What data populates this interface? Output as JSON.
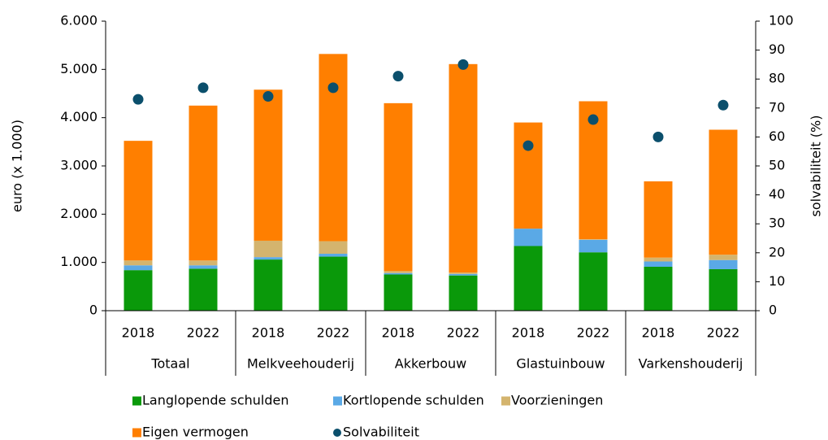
{
  "chart_data": {
    "type": "bar",
    "y_label": "euro (x 1.000)",
    "y2_label": "solvabiliteit (%)",
    "categories": [
      "2018",
      "2022",
      "2018",
      "2022",
      "2018",
      "2022",
      "2018",
      "2022",
      "2018",
      "2022"
    ],
    "groups": [
      "Totaal",
      "Melkveehouderij",
      "Akkerbouw",
      "Glastuinbouw",
      "Varkenshouderij"
    ],
    "series": [
      {
        "name": "Langlopende schulden",
        "color": "#0a990a",
        "values": [
          840,
          870,
          1060,
          1120,
          750,
          730,
          1340,
          1210,
          910,
          860
        ]
      },
      {
        "name": "Kortlopende schulden",
        "color": "#5aa9e6",
        "values": [
          100,
          70,
          50,
          60,
          30,
          30,
          360,
          260,
          110,
          190
        ]
      },
      {
        "name": "Voorzieningen",
        "color": "#d4b46e",
        "values": [
          100,
          100,
          340,
          260,
          40,
          30,
          0,
          10,
          80,
          110
        ]
      },
      {
        "name": "Eigen vermogen",
        "color": "#ff7f00",
        "values": [
          2480,
          3210,
          3130,
          3880,
          3480,
          4320,
          2200,
          2860,
          1580,
          2590
        ]
      },
      {
        "name": "Solvabiliteit",
        "color": "#0b4f6c",
        "axis": "y2",
        "values": [
          73,
          77,
          74,
          77,
          81,
          85,
          57,
          66,
          60,
          71
        ]
      }
    ],
    "ylim": [
      0,
      6000
    ],
    "yticks": [
      0,
      {
        "value": 1000,
        "label": "1.000"
      },
      {
        "value": 2000,
        "label": "2.000"
      },
      {
        "value": 3000,
        "label": "3.000"
      },
      {
        "value": 4000,
        "label": "4.000"
      },
      {
        "value": 5000,
        "label": "5.000"
      },
      {
        "value": 6000,
        "label": "6.000"
      }
    ],
    "y2lim": [
      0,
      100
    ],
    "y2ticks": [
      0,
      10,
      20,
      30,
      40,
      50,
      60,
      70,
      80,
      90,
      100
    ],
    "grid": false,
    "legend": "bottom"
  }
}
